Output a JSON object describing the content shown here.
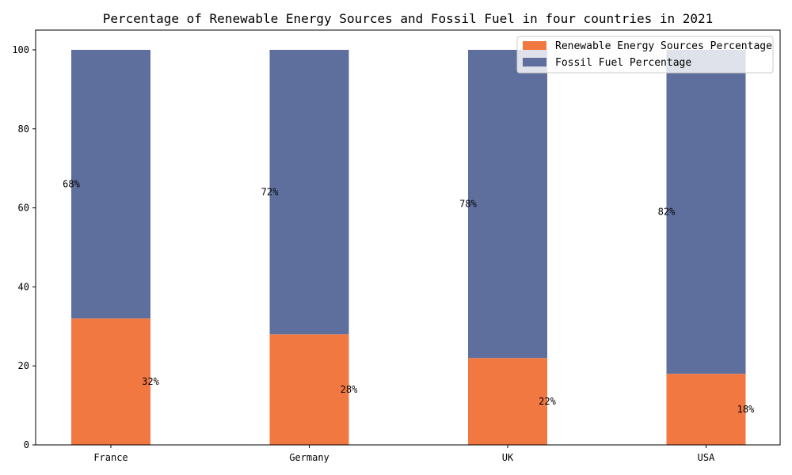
{
  "colors": {
    "renewable": "#f27842",
    "fossil": "#5e6f9d",
    "axis": "#000000",
    "legend_border": "#cccccc"
  },
  "chart_data": {
    "type": "bar",
    "stacked": true,
    "title": "Percentage of Renewable Energy Sources and Fossil Fuel in four countries in 2021",
    "xlabel": "",
    "ylabel": "",
    "categories": [
      "France",
      "Germany",
      "UK",
      "USA"
    ],
    "series": [
      {
        "name": "Renewable Energy Sources Percentage",
        "values": [
          32,
          28,
          22,
          18
        ],
        "labels": [
          "32%",
          "28%",
          "22%",
          "18%"
        ],
        "color": "#f27842"
      },
      {
        "name": "Fossil Fuel Percentage",
        "values": [
          68,
          72,
          78,
          82
        ],
        "labels": [
          "68%",
          "72%",
          "78%",
          "82%"
        ],
        "color": "#5e6f9d"
      }
    ],
    "ylim": [
      0,
      105
    ],
    "yticks": [
      0,
      20,
      40,
      60,
      80,
      100
    ],
    "grid": false,
    "legend_position": "top-right"
  }
}
